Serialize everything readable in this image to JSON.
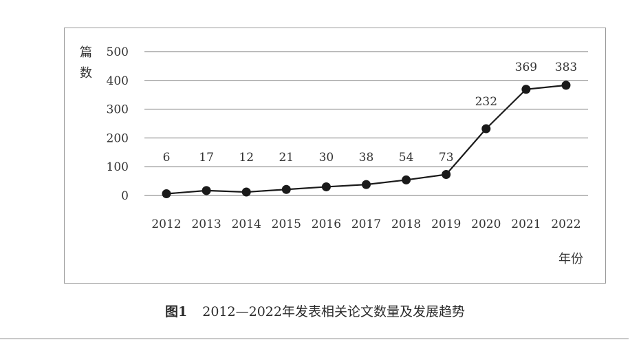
{
  "caption": {
    "figure_number": "图1",
    "text": "2012—2022年发表相关论文数量及发展趋势"
  },
  "chart_data": {
    "type": "line",
    "title": "",
    "ylabel": "篇数",
    "xlabel": "年份",
    "ylim": [
      0,
      500
    ],
    "yticks": [
      0,
      100,
      200,
      300,
      400,
      500
    ],
    "grid": true,
    "legend": "none",
    "categories": [
      "2012",
      "2013",
      "2014",
      "2015",
      "2016",
      "2017",
      "2018",
      "2019",
      "2020",
      "2021",
      "2022"
    ],
    "series": [
      {
        "values": [
          6,
          17,
          12,
          21,
          30,
          38,
          54,
          73,
          232,
          369,
          383
        ]
      }
    ],
    "data_labels": [
      "6",
      "17",
      "12",
      "21",
      "30",
      "38",
      "54",
      "73",
      "232",
      "369",
      "383"
    ],
    "line_color": "#1a1a1a",
    "grid_color": "#7a7a7a"
  }
}
